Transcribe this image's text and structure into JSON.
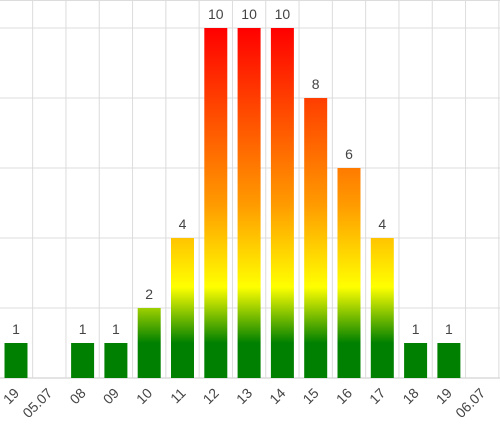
{
  "chart_data": {
    "type": "bar",
    "title": "",
    "xlabel": "",
    "ylabel": "",
    "ylim": [
      0,
      10.5
    ],
    "grid": true,
    "legend": "none",
    "categories": [
      "19",
      "05.07",
      "08",
      "09",
      "10",
      "11",
      "12",
      "13",
      "14",
      "15",
      "16",
      "17",
      "18",
      "19",
      "06.07"
    ],
    "values": [
      1,
      null,
      1,
      1,
      2,
      4,
      10,
      10,
      10,
      8,
      6,
      4,
      1,
      1,
      null
    ],
    "colors": {
      "low": "#008000",
      "mid": "#ffff00",
      "high": "#ff0000",
      "orange": "#ff9900"
    }
  }
}
